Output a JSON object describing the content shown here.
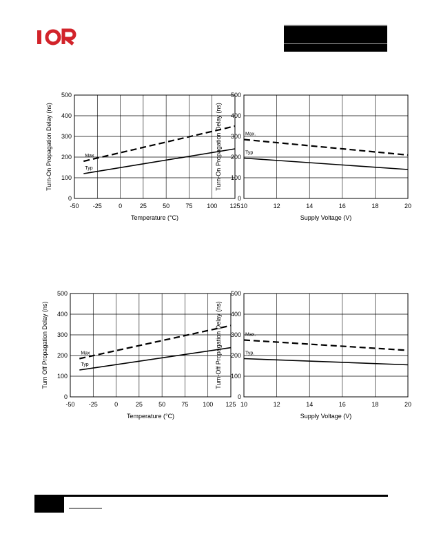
{
  "brand": {
    "logo_text": "IOR",
    "logo_color": "#d2232a"
  },
  "chart_data": [
    {
      "type": "line",
      "title": "",
      "xlabel": "Temperature (°C)",
      "ylabel": "Turn-On Propagation Delay (ns)",
      "xlim": [
        -50,
        125
      ],
      "ylim": [
        0,
        500
      ],
      "xticks": [
        -50,
        -25,
        0,
        25,
        50,
        75,
        100,
        125
      ],
      "yticks": [
        0,
        100,
        200,
        300,
        400,
        500
      ],
      "grid": true,
      "series": [
        {
          "name": "Max",
          "style": "dashed",
          "x": [
            -40,
            125
          ],
          "y": [
            180,
            350
          ]
        },
        {
          "name": "Typ",
          "style": "solid",
          "x": [
            -40,
            125
          ],
          "y": [
            120,
            240
          ]
        }
      ]
    },
    {
      "type": "line",
      "title": "",
      "xlabel": "Supply Voltage (V)",
      "ylabel": "Turn-On Propagation Delay (ns)",
      "xlim": [
        10,
        20
      ],
      "ylim": [
        0,
        500
      ],
      "xticks": [
        10,
        12,
        14,
        16,
        18,
        20
      ],
      "yticks": [
        0,
        100,
        200,
        300,
        400,
        500
      ],
      "grid": true,
      "series": [
        {
          "name": "Max.",
          "style": "dashed",
          "x": [
            10,
            20
          ],
          "y": [
            285,
            210
          ]
        },
        {
          "name": "Typ",
          "style": "solid",
          "x": [
            10,
            20
          ],
          "y": [
            195,
            140
          ]
        }
      ]
    },
    {
      "type": "line",
      "title": "",
      "xlabel": "Temperature (°C)",
      "ylabel": "Turn Off Propagation Delay (ns)",
      "xlim": [
        -50,
        125
      ],
      "ylim": [
        0,
        500
      ],
      "xticks": [
        -50,
        -25,
        0,
        25,
        50,
        75,
        100,
        125
      ],
      "yticks": [
        0,
        100,
        200,
        300,
        400,
        500
      ],
      "grid": true,
      "series": [
        {
          "name": "Max",
          "style": "dashed",
          "x": [
            -40,
            125
          ],
          "y": [
            185,
            345
          ]
        },
        {
          "name": "Typ",
          "style": "solid",
          "x": [
            -40,
            125
          ],
          "y": [
            130,
            238
          ]
        }
      ]
    },
    {
      "type": "line",
      "title": "",
      "xlabel": "Supply Voltage (V)",
      "ylabel": "Turn-Off Propagation Delay (ns)",
      "xlim": [
        10,
        20
      ],
      "ylim": [
        0,
        500
      ],
      "xticks": [
        10,
        12,
        14,
        16,
        18,
        20
      ],
      "yticks": [
        0,
        100,
        200,
        300,
        400,
        500
      ],
      "grid": true,
      "series": [
        {
          "name": "Max.",
          "style": "dashed",
          "x": [
            10,
            20
          ],
          "y": [
            275,
            225
          ]
        },
        {
          "name": "Typ.",
          "style": "solid",
          "x": [
            10,
            20
          ],
          "y": [
            185,
            155
          ]
        }
      ]
    }
  ]
}
